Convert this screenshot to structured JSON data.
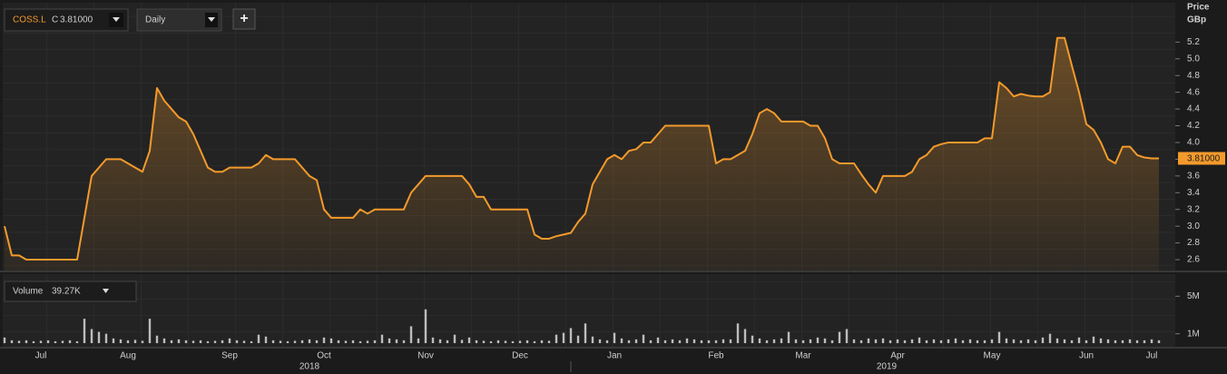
{
  "toolbar": {
    "symbol": "COSS.L",
    "close_prefix": "C",
    "close_value": "3.81000",
    "interval": "Daily",
    "add_button": "+"
  },
  "volume_box": {
    "label": "Volume",
    "value": "39.27K"
  },
  "chart_data": {
    "type": "line",
    "y_axis_title": "Price",
    "y_axis_unit": "GBp",
    "color": "#f39a2c",
    "categories": [
      null,
      null,
      null,
      null,
      null,
      "Jul",
      null,
      null,
      null,
      null,
      null,
      null,
      null,
      null,
      null,
      null,
      null,
      "Aug",
      null,
      null,
      null,
      null,
      null,
      null,
      null,
      null,
      null,
      null,
      null,
      null,
      null,
      "Sep",
      null,
      null,
      null,
      null,
      null,
      null,
      null,
      null,
      null,
      null,
      null,
      null,
      "Oct",
      null,
      null,
      null,
      null,
      null,
      null,
      null,
      null,
      null,
      null,
      null,
      null,
      null,
      "Nov",
      null,
      null,
      null,
      null,
      null,
      null,
      null,
      null,
      null,
      null,
      null,
      null,
      "Dec",
      null,
      null,
      null,
      null,
      null,
      null,
      null,
      null,
      null,
      null,
      null,
      null,
      "Jan",
      null,
      null,
      null,
      null,
      null,
      null,
      null,
      null,
      null,
      null,
      null,
      null,
      null,
      "Feb",
      null,
      null,
      null,
      null,
      null,
      null,
      null,
      null,
      null,
      null,
      null,
      "Mar",
      null,
      null,
      null,
      null,
      null,
      null,
      null,
      null,
      null,
      null,
      null,
      null,
      "Apr",
      null,
      null,
      null,
      null,
      null,
      null,
      null,
      null,
      null,
      null,
      null,
      null,
      "May",
      null,
      null,
      null,
      null,
      null,
      null,
      null,
      null,
      null,
      null,
      null,
      null,
      "Jun",
      null,
      null,
      null,
      null,
      null,
      null,
      null,
      null,
      "Jul",
      null
    ],
    "year_labels": [
      "2018",
      "2019"
    ],
    "series": [
      {
        "name": "Price",
        "color": "#f39a2c",
        "values": [
          3.0,
          2.65,
          2.65,
          2.6,
          2.6,
          2.6,
          2.6,
          2.6,
          2.6,
          2.6,
          2.6,
          3.1,
          3.6,
          3.7,
          3.8,
          3.8,
          3.8,
          3.75,
          3.7,
          3.65,
          3.9,
          4.65,
          4.5,
          4.4,
          4.3,
          4.25,
          4.1,
          3.9,
          3.7,
          3.65,
          3.65,
          3.7,
          3.7,
          3.7,
          3.7,
          3.75,
          3.85,
          3.8,
          3.8,
          3.8,
          3.8,
          3.7,
          3.6,
          3.55,
          3.2,
          3.1,
          3.1,
          3.1,
          3.1,
          3.2,
          3.15,
          3.2,
          3.2,
          3.2,
          3.2,
          3.2,
          3.4,
          3.5,
          3.6,
          3.6,
          3.6,
          3.6,
          3.6,
          3.6,
          3.5,
          3.35,
          3.35,
          3.2,
          3.2,
          3.2,
          3.2,
          3.2,
          3.2,
          2.9,
          2.85,
          2.85,
          2.88,
          2.9,
          2.92,
          3.05,
          3.15,
          3.5,
          3.65,
          3.8,
          3.85,
          3.8,
          3.9,
          3.92,
          4.0,
          4.0,
          4.1,
          4.2,
          4.2,
          4.2,
          4.2,
          4.2,
          4.2,
          4.2,
          3.75,
          3.8,
          3.8,
          3.85,
          3.9,
          4.1,
          4.35,
          4.4,
          4.35,
          4.25,
          4.25,
          4.25,
          4.25,
          4.2,
          4.2,
          4.05,
          3.8,
          3.75,
          3.75,
          3.75,
          3.62,
          3.5,
          3.4,
          3.6,
          3.6,
          3.6,
          3.6,
          3.65,
          3.8,
          3.85,
          3.95,
          3.98,
          4.0,
          4.0,
          4.0,
          4.0,
          4.0,
          4.05,
          4.05,
          4.72,
          4.65,
          4.55,
          4.58,
          4.56,
          4.55,
          4.55,
          4.6,
          5.25,
          5.25,
          4.92,
          4.6,
          4.22,
          4.15,
          4.0,
          3.8,
          3.75,
          3.95,
          3.95,
          3.85,
          3.82,
          3.81,
          3.81
        ]
      }
    ],
    "last_value_label": "3.81000",
    "ylim": [
      2.47,
      5.67
    ],
    "yticks": [
      2.6,
      2.8,
      {
        "value": 3,
        "label": "3.0"
      },
      3.2,
      3.4,
      3.6,
      3.8,
      {
        "value": 4,
        "label": "4.0"
      },
      4.2,
      4.4,
      4.6,
      4.8,
      {
        "value": 5,
        "label": "5.0"
      },
      5.2
    ],
    "volume": {
      "type": "bar",
      "color": "#bdbdbd",
      "values": [
        600000,
        300000,
        250000,
        300000,
        200000,
        250000,
        300000,
        200000,
        250000,
        300000,
        200000,
        2600000,
        1500000,
        1200000,
        1000000,
        500000,
        400000,
        300000,
        350000,
        250000,
        2600000,
        800000,
        500000,
        300000,
        400000,
        300000,
        250000,
        300000,
        200000,
        250000,
        300000,
        500000,
        300000,
        250000,
        200000,
        900000,
        700000,
        300000,
        250000,
        200000,
        250000,
        300000,
        400000,
        300000,
        600000,
        500000,
        300000,
        250000,
        300000,
        200000,
        250000,
        300000,
        900000,
        500000,
        400000,
        300000,
        1800000,
        500000,
        3600000,
        600000,
        400000,
        300000,
        900000,
        350000,
        600000,
        300000,
        250000,
        200000,
        300000,
        250000,
        200000,
        250000,
        300000,
        200000,
        300000,
        250000,
        900000,
        1100000,
        1600000,
        800000,
        2100000,
        700000,
        400000,
        300000,
        1100000,
        500000,
        300000,
        400000,
        900000,
        300000,
        600000,
        300000,
        400000,
        300000,
        500000,
        400000,
        300000,
        300000,
        300000,
        400000,
        400000,
        2100000,
        1500000,
        800000,
        500000,
        300000,
        400000,
        500000,
        1200000,
        400000,
        300000,
        400000,
        600000,
        500000,
        300000,
        1200000,
        1500000,
        400000,
        300000,
        500000,
        400000,
        500000,
        300000,
        400000,
        300000,
        400000,
        600000,
        300000,
        400000,
        300000,
        400000,
        500000,
        300000,
        400000,
        300000,
        300000,
        400000,
        1200000,
        500000,
        400000,
        300000,
        400000,
        300000,
        600000,
        1000000,
        500000,
        400000,
        300000,
        600000,
        300000,
        700000,
        500000,
        400000,
        300000,
        300000,
        400000,
        300000,
        300000,
        400000,
        300000
      ],
      "ylim": [
        0,
        7350000
      ],
      "yticks": [
        {
          "value": 5000000,
          "label": "5M"
        },
        {
          "value": 1000000,
          "label": "1M"
        }
      ]
    }
  }
}
